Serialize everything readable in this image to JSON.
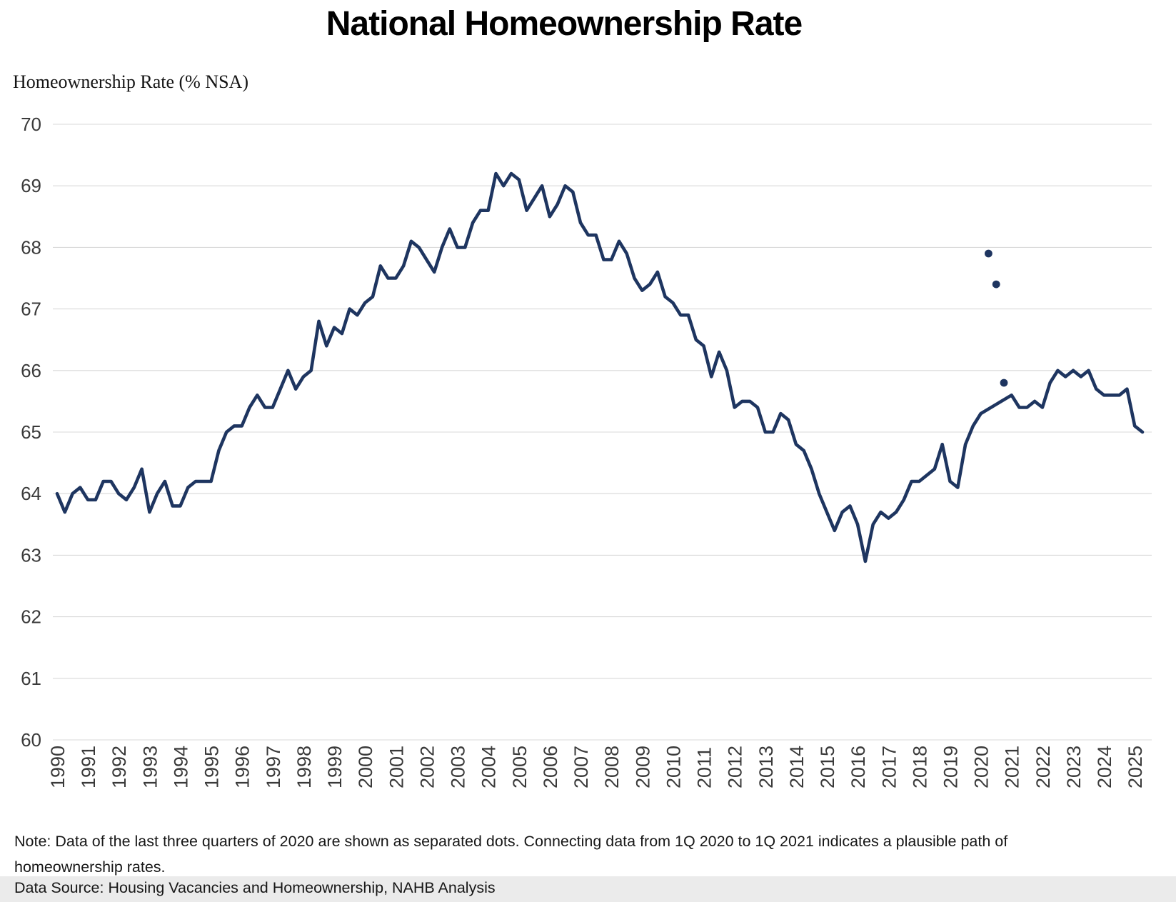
{
  "title": "National Homeownership Rate",
  "y_axis_title": "Homeownership Rate (% NSA)",
  "note": "Note: Data of the last three quarters of 2020 are shown as separated dots. Connecting data from 1Q 2020 to 1Q 2021 indicates a plausible path of homeownership rates.",
  "data_source": "Data Source: Housing Vacancies and Homeownership, NAHB Analysis",
  "colors": {
    "line": "#1e3560",
    "gridline": "#d9d9d9",
    "tick_text": "#3a3a3a",
    "title_text": "#000000",
    "footer_band": "#ebebeb"
  },
  "chart_data": {
    "type": "line",
    "title": "National Homeownership Rate",
    "ylabel": "Homeownership Rate (% NSA)",
    "ylim": [
      60,
      70
    ],
    "ytick_labels": [
      "70",
      "69",
      "68",
      "67",
      "66",
      "65",
      "64",
      "63",
      "62",
      "61",
      "60"
    ],
    "grid": "horizontal gridlines only",
    "legend": "none",
    "frequency": "quarterly",
    "x_start": {
      "year": 1990,
      "quarter": 1
    },
    "x_end": {
      "year": 2025,
      "quarter": 2
    },
    "xtick_labels": [
      "1990",
      "1991",
      "1992",
      "1993",
      "1994",
      "1995",
      "1996",
      "1997",
      "1998",
      "1999",
      "2000",
      "2001",
      "2002",
      "2003",
      "2004",
      "2005",
      "2006",
      "2007",
      "2008",
      "2009",
      "2010",
      "2011",
      "2012",
      "2013",
      "2014",
      "2015",
      "2016",
      "2017",
      "2018",
      "2019",
      "2020",
      "2021",
      "2022",
      "2023",
      "2024",
      "2025"
    ],
    "series": [
      {
        "name": "Homeownership rate (% NSA)",
        "note": "values are quarterly 1990Q1-2025Q2; nulls are 2020 Q2-Q4 shown as separated dots, line connects 1Q 2020 to 1Q 2021",
        "values": [
          64.0,
          63.7,
          64.0,
          64.1,
          63.9,
          63.9,
          64.2,
          64.2,
          64.0,
          63.9,
          64.1,
          64.4,
          63.7,
          64.0,
          64.2,
          63.8,
          63.8,
          64.1,
          64.2,
          64.2,
          64.2,
          64.7,
          65.0,
          65.1,
          65.1,
          65.4,
          65.6,
          65.4,
          65.4,
          65.7,
          66.0,
          65.7,
          65.9,
          66.0,
          66.8,
          66.4,
          66.7,
          66.6,
          67.0,
          66.9,
          67.1,
          67.2,
          67.7,
          67.5,
          67.5,
          67.7,
          68.1,
          68.0,
          67.8,
          67.6,
          68.0,
          68.3,
          68.0,
          68.0,
          68.4,
          68.6,
          68.6,
          69.2,
          69.0,
          69.2,
          69.1,
          68.6,
          68.8,
          69.0,
          68.5,
          68.7,
          69.0,
          68.9,
          68.4,
          68.2,
          68.2,
          67.8,
          67.8,
          68.1,
          67.9,
          67.5,
          67.3,
          67.4,
          67.6,
          67.2,
          67.1,
          66.9,
          66.9,
          66.5,
          66.4,
          65.9,
          66.3,
          66.0,
          65.4,
          65.5,
          65.5,
          65.4,
          65.0,
          65.0,
          65.3,
          65.2,
          64.8,
          64.7,
          64.4,
          64.0,
          63.7,
          63.4,
          63.7,
          63.8,
          63.5,
          62.9,
          63.5,
          63.7,
          63.6,
          63.7,
          63.9,
          64.2,
          64.2,
          64.3,
          64.4,
          64.8,
          64.2,
          64.1,
          64.8,
          65.1,
          65.3,
          null,
          null,
          null,
          65.6,
          65.4,
          65.4,
          65.5,
          65.4,
          65.8,
          66.0,
          65.9,
          66.0,
          65.9,
          66.0,
          65.7,
          65.6,
          65.6,
          65.6,
          65.7,
          65.1,
          65.0
        ]
      }
    ],
    "separated_dots": [
      {
        "year": 2020,
        "quarter": 2,
        "value": 67.9
      },
      {
        "year": 2020,
        "quarter": 3,
        "value": 67.4
      },
      {
        "year": 2020,
        "quarter": 4,
        "value": 65.8
      }
    ]
  }
}
